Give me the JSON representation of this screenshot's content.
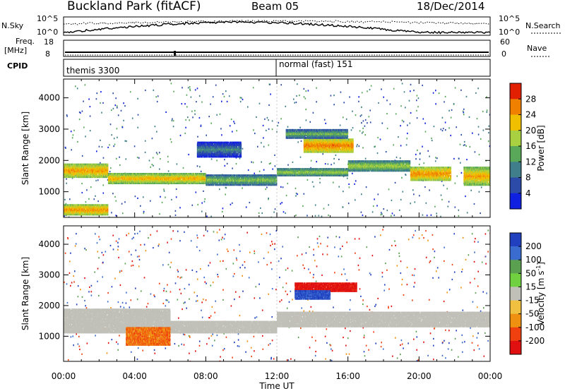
{
  "header": {
    "site": "Buckland Park (fitACF)",
    "beam": "Beam 05",
    "date": "18/Dec/2014"
  },
  "top_panels": {
    "nsky_label": "N.Sky",
    "nsearch_label": "N.Search",
    "nsky_ticks": [
      "10^5",
      "10^0"
    ],
    "nsearch_ticks": [
      "10^5",
      "10^0"
    ],
    "freq_label_1": "Freq.",
    "freq_label_2": "[MHz]",
    "freq_ticks": [
      "18",
      "8"
    ],
    "nave_label": "Nave",
    "nave_ticks": [
      "60",
      "0"
    ],
    "cpid_label": "CPID",
    "cpid_segments": [
      {
        "name": "themis 3300",
        "start": 0,
        "end": 12
      },
      {
        "name": "normal (fast) 151",
        "start": 12,
        "end": 24
      }
    ]
  },
  "chart_data": [
    {
      "type": "heatmap",
      "title": "",
      "xlabel": "Time UT",
      "ylabel": "Slant Range [km]",
      "x_ticks": [
        "00:00",
        "04:00",
        "08:00",
        "12:00",
        "16:00",
        "20:00",
        "00:00"
      ],
      "xlim": [
        0,
        24
      ],
      "y_ticks": [
        "1000",
        "2000",
        "3000",
        "4000"
      ],
      "ylim": [
        180,
        4600
      ],
      "colorbar_label": "Power [dB]",
      "colorbar_ticks": [
        "4",
        "8",
        "12",
        "16",
        "20",
        "24",
        "28"
      ],
      "colorbar_colors": [
        "#1020e0",
        "#2c4aa8",
        "#3f7e8a",
        "#59a85a",
        "#a8d040",
        "#f0c000",
        "#f08000",
        "#e02000"
      ],
      "features": [
        {
          "t0": 0.0,
          "t1": 2.5,
          "r0": 1450,
          "r1": 1900,
          "level": 26
        },
        {
          "t0": 0.0,
          "t1": 2.5,
          "r0": 250,
          "r1": 600,
          "level": 27
        },
        {
          "t0": 2.5,
          "t1": 8.0,
          "r0": 1250,
          "r1": 1600,
          "level": 25
        },
        {
          "t0": 8.0,
          "t1": 12.0,
          "r0": 1200,
          "r1": 1550,
          "level": 18
        },
        {
          "t0": 12.0,
          "t1": 16.0,
          "r0": 1500,
          "r1": 1750,
          "level": 20
        },
        {
          "t0": 16.0,
          "t1": 19.5,
          "r0": 1650,
          "r1": 2000,
          "level": 20
        },
        {
          "t0": 19.5,
          "t1": 21.8,
          "r0": 1350,
          "r1": 1800,
          "level": 27
        },
        {
          "t0": 22.5,
          "t1": 24.0,
          "r0": 1200,
          "r1": 1800,
          "level": 25
        },
        {
          "t0": 13.5,
          "t1": 16.3,
          "r0": 2250,
          "r1": 2700,
          "level": 28
        },
        {
          "t0": 12.5,
          "t1": 16.0,
          "r0": 2700,
          "r1": 3000,
          "level": 17
        },
        {
          "t0": 7.5,
          "t1": 10.0,
          "r0": 2100,
          "r1": 2600,
          "level": 12
        }
      ]
    },
    {
      "type": "heatmap",
      "title": "",
      "xlabel": "Time UT",
      "ylabel": "Slant Range [km]",
      "x_ticks": [
        "00:00",
        "04:00",
        "08:00",
        "12:00",
        "16:00",
        "20:00",
        "00:00"
      ],
      "xlim": [
        0,
        24
      ],
      "y_ticks": [
        "1000",
        "2000",
        "3000",
        "4000"
      ],
      "ylim": [
        180,
        4600
      ],
      "colorbar_label": "Velocity [m s",
      "colorbar_label_sup": "-1",
      "colorbar_label_end": "]",
      "colorbar_ticks": [
        "200",
        "100",
        "50",
        "15",
        "-15",
        "-50",
        "-100",
        "-200"
      ],
      "colorbar_colors": [
        "#2040c0",
        "#3a6cd0",
        "#5aa050",
        "#70d040",
        "#c0c0b8",
        "#f0c040",
        "#f09010",
        "#f04010",
        "#e01010"
      ],
      "features": [
        {
          "t0": 0.0,
          "t1": 6.0,
          "r0": 1100,
          "r1": 1900,
          "level": 0
        },
        {
          "t0": 6.0,
          "t1": 12.0,
          "r0": 1100,
          "r1": 1500,
          "level": 0
        },
        {
          "t0": 12.0,
          "t1": 24.0,
          "r0": 1300,
          "r1": 1800,
          "level": 0
        },
        {
          "t0": 13.0,
          "t1": 16.5,
          "r0": 2450,
          "r1": 2750,
          "level": -180
        },
        {
          "t0": 13.0,
          "t1": 15.0,
          "r0": 2200,
          "r1": 2500,
          "level": 160
        },
        {
          "t0": 3.5,
          "t1": 6.0,
          "r0": 700,
          "r1": 1300,
          "level": -70
        }
      ]
    }
  ]
}
